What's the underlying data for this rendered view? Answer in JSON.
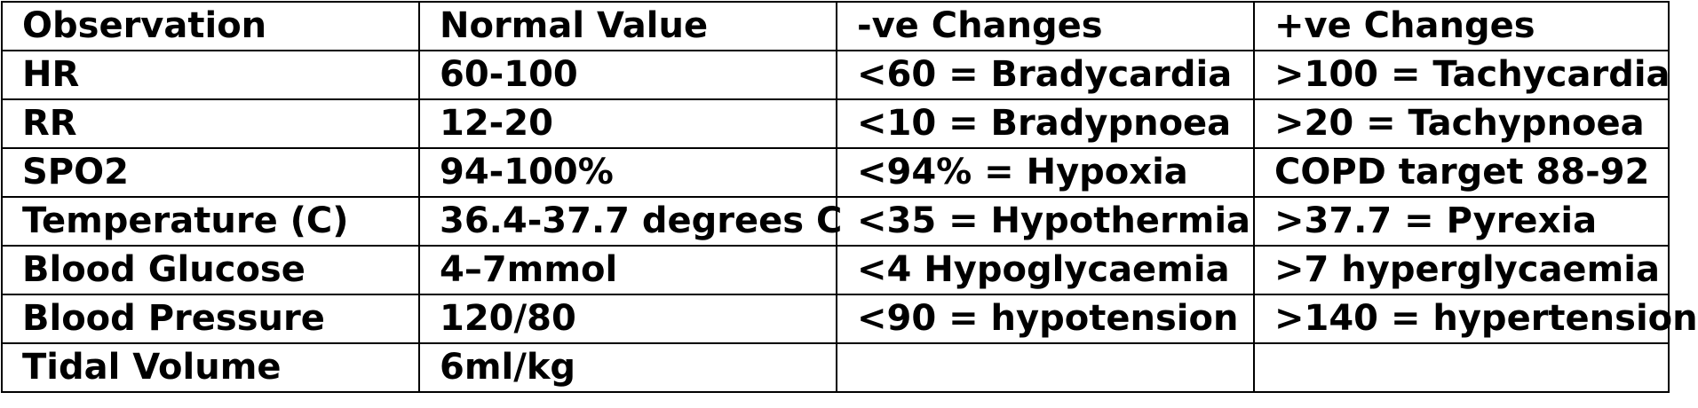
{
  "table": {
    "headers": [
      "Observation",
      "Normal Value",
      "-ve Changes",
      "+ve Changes"
    ],
    "rows": [
      [
        "HR",
        "60-100",
        "<60 = Bradycardia",
        ">100 = Tachycardia"
      ],
      [
        "RR",
        "12-20",
        "<10 = Bradypnoea",
        ">20 = Tachypnoea"
      ],
      [
        "SPO2",
        "94-100%",
        "<94% = Hypoxia",
        "COPD target 88-92"
      ],
      [
        "Temperature (C)",
        "36.4-37.7 degrees C",
        "<35 = Hypothermia",
        ">37.7 = Pyrexia"
      ],
      [
        "Blood Glucose",
        "4–7mmol",
        "<4 Hypoglycaemia",
        ">7 hyperglycaemia"
      ],
      [
        "Blood Pressure",
        "120/80",
        "<90 = hypotension",
        ">140 = hypertension"
      ],
      [
        "Tidal Volume",
        "6ml/kg",
        "",
        ""
      ]
    ]
  }
}
